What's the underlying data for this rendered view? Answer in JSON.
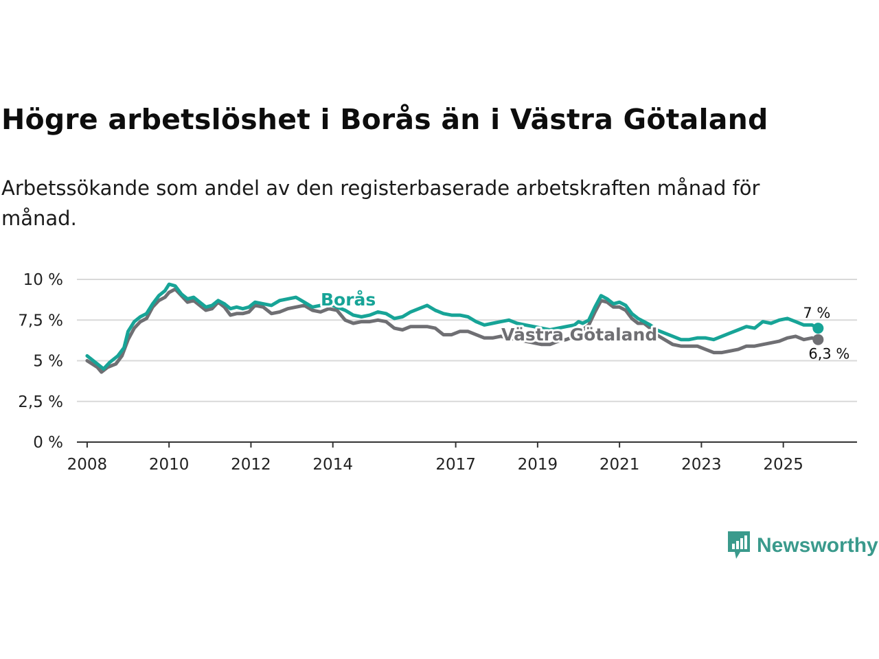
{
  "title": "Högre arbetslöshet i Borås än i Västra Götaland",
  "subtitle": "Arbetssökande som andel av den registerbaserade arbetskraften månad för månad.",
  "brand": "Newsworthy",
  "colors": {
    "boras": "#17a497",
    "vg": "#6f6f73",
    "grid": "#d9d9d9",
    "axis": "#333333",
    "brand": "#3a9a8c"
  },
  "chart_data": {
    "type": "line",
    "title": "Högre arbetslöshet i Borås än i Västra Götaland",
    "xlabel": "",
    "ylabel": "",
    "xlim": [
      2007.75,
      2026.8
    ],
    "ylim": [
      0,
      10
    ],
    "yticks": [
      0,
      2.5,
      5,
      7.5,
      10
    ],
    "ytick_labels": [
      "0 %",
      "2,5 %",
      "5 %",
      "7,5 %",
      "10 %"
    ],
    "xticks": [
      2008,
      2010,
      2012,
      2014,
      2017,
      2019,
      2021,
      2023,
      2025
    ],
    "xtick_labels": [
      "2008",
      "2010",
      "2012",
      "2014",
      "2017",
      "2019",
      "2021",
      "2023",
      "2025"
    ],
    "grid": true,
    "series": [
      {
        "name": "Borås",
        "end_label": "7 %",
        "x": [
          2008.0,
          2008.25,
          2008.4,
          2008.55,
          2008.75,
          2008.9,
          2009.0,
          2009.15,
          2009.3,
          2009.45,
          2009.6,
          2009.75,
          2009.9,
          2010.0,
          2010.15,
          2010.3,
          2010.45,
          2010.6,
          2010.75,
          2010.9,
          2011.05,
          2011.2,
          2011.35,
          2011.5,
          2011.65,
          2011.8,
          2011.95,
          2012.1,
          2012.3,
          2012.5,
          2012.7,
          2012.9,
          2013.1,
          2013.3,
          2013.5,
          2013.7,
          2013.9,
          2014.1,
          2014.3,
          2014.5,
          2014.7,
          2014.9,
          2015.1,
          2015.3,
          2015.5,
          2015.7,
          2015.9,
          2016.1,
          2016.3,
          2016.5,
          2016.7,
          2016.9,
          2017.1,
          2017.3,
          2017.5,
          2017.7,
          2017.9,
          2018.1,
          2018.3,
          2018.5,
          2018.7,
          2018.9,
          2019.1,
          2019.3,
          2019.5,
          2019.7,
          2019.9,
          2020.0,
          2020.1,
          2020.25,
          2020.4,
          2020.55,
          2020.7,
          2020.85,
          2021.0,
          2021.15,
          2021.3,
          2021.45,
          2021.6,
          2021.75,
          2021.9,
          2022.1,
          2022.3,
          2022.5,
          2022.7,
          2022.9,
          2023.1,
          2023.3,
          2023.5,
          2023.7,
          2023.9,
          2024.1,
          2024.3,
          2024.5,
          2024.7,
          2024.9,
          2025.1,
          2025.3,
          2025.5,
          2025.7,
          2025.85
        ],
        "values": [
          5.3,
          4.8,
          4.5,
          4.9,
          5.3,
          5.8,
          6.8,
          7.4,
          7.7,
          7.9,
          8.5,
          9.0,
          9.3,
          9.7,
          9.6,
          9.1,
          8.8,
          8.9,
          8.6,
          8.3,
          8.4,
          8.7,
          8.5,
          8.2,
          8.3,
          8.2,
          8.3,
          8.6,
          8.5,
          8.4,
          8.7,
          8.8,
          8.9,
          8.6,
          8.3,
          8.4,
          8.5,
          8.3,
          8.1,
          7.8,
          7.7,
          7.8,
          8.0,
          7.9,
          7.6,
          7.7,
          8.0,
          8.2,
          8.4,
          8.1,
          7.9,
          7.8,
          7.8,
          7.7,
          7.4,
          7.2,
          7.3,
          7.4,
          7.5,
          7.3,
          7.2,
          7.1,
          7.0,
          6.9,
          7.0,
          7.1,
          7.2,
          7.4,
          7.3,
          7.5,
          8.3,
          9.0,
          8.8,
          8.5,
          8.6,
          8.4,
          7.9,
          7.6,
          7.4,
          7.2,
          6.9,
          6.7,
          6.5,
          6.3,
          6.3,
          6.4,
          6.4,
          6.3,
          6.5,
          6.7,
          6.9,
          7.1,
          7.0,
          7.4,
          7.3,
          7.5,
          7.6,
          7.4,
          7.2,
          7.2,
          7.0
        ]
      },
      {
        "name": "Västra Götaland",
        "end_label": "6,3 %",
        "x": [
          2008.0,
          2008.25,
          2008.35,
          2008.5,
          2008.7,
          2008.85,
          2009.0,
          2009.15,
          2009.3,
          2009.45,
          2009.6,
          2009.75,
          2009.9,
          2010.0,
          2010.15,
          2010.3,
          2010.45,
          2010.6,
          2010.75,
          2010.9,
          2011.05,
          2011.2,
          2011.35,
          2011.5,
          2011.65,
          2011.8,
          2011.95,
          2012.1,
          2012.3,
          2012.5,
          2012.7,
          2012.9,
          2013.1,
          2013.3,
          2013.5,
          2013.7,
          2013.9,
          2014.1,
          2014.3,
          2014.5,
          2014.7,
          2014.9,
          2015.1,
          2015.3,
          2015.5,
          2015.7,
          2015.9,
          2016.1,
          2016.3,
          2016.5,
          2016.7,
          2016.9,
          2017.1,
          2017.3,
          2017.5,
          2017.7,
          2017.9,
          2018.1,
          2018.3,
          2018.5,
          2018.7,
          2018.9,
          2019.1,
          2019.3,
          2019.5,
          2019.7,
          2019.9,
          2020.0,
          2020.1,
          2020.25,
          2020.4,
          2020.55,
          2020.7,
          2020.85,
          2021.0,
          2021.15,
          2021.3,
          2021.45,
          2021.6,
          2021.75,
          2021.9,
          2022.1,
          2022.3,
          2022.5,
          2022.7,
          2022.9,
          2023.1,
          2023.3,
          2023.5,
          2023.7,
          2023.9,
          2024.1,
          2024.3,
          2024.5,
          2024.7,
          2024.9,
          2025.1,
          2025.3,
          2025.5,
          2025.7,
          2025.85
        ],
        "values": [
          5.0,
          4.6,
          4.3,
          4.6,
          4.8,
          5.3,
          6.3,
          7.0,
          7.4,
          7.6,
          8.3,
          8.7,
          8.9,
          9.2,
          9.4,
          9.0,
          8.6,
          8.7,
          8.4,
          8.1,
          8.2,
          8.6,
          8.3,
          7.8,
          7.9,
          7.9,
          8.0,
          8.4,
          8.3,
          7.9,
          8.0,
          8.2,
          8.3,
          8.4,
          8.1,
          8.0,
          8.2,
          8.1,
          7.5,
          7.3,
          7.4,
          7.4,
          7.5,
          7.4,
          7.0,
          6.9,
          7.1,
          7.1,
          7.1,
          7.0,
          6.6,
          6.6,
          6.8,
          6.8,
          6.6,
          6.4,
          6.4,
          6.5,
          6.4,
          6.3,
          6.2,
          6.1,
          6.0,
          6.0,
          6.2,
          6.3,
          6.5,
          6.7,
          6.9,
          7.2,
          8.0,
          8.7,
          8.6,
          8.3,
          8.3,
          8.1,
          7.6,
          7.3,
          7.3,
          7.0,
          6.6,
          6.3,
          6.0,
          5.9,
          5.9,
          5.9,
          5.7,
          5.5,
          5.5,
          5.6,
          5.7,
          5.9,
          5.9,
          6.0,
          6.1,
          6.2,
          6.4,
          6.5,
          6.3,
          6.4,
          6.3
        ]
      }
    ]
  }
}
